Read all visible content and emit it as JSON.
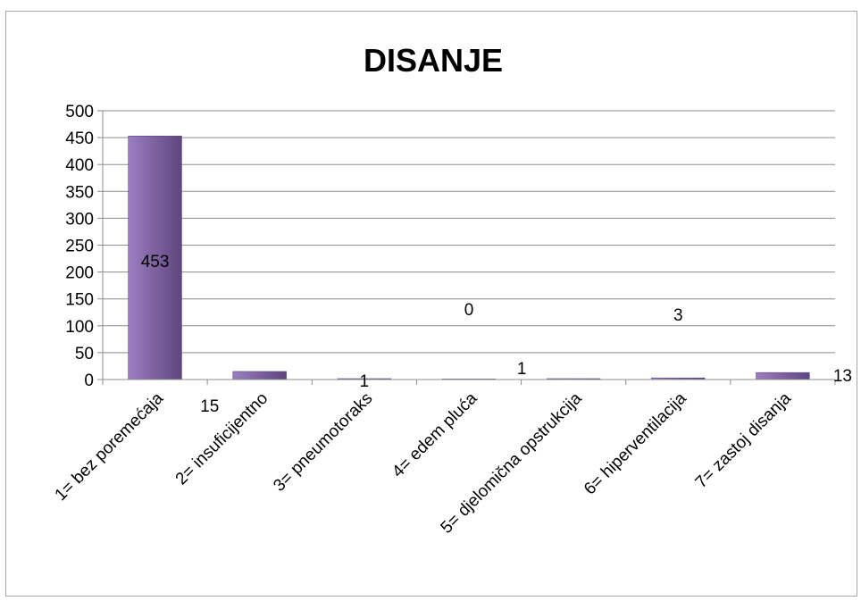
{
  "chart_data": {
    "type": "bar",
    "title": "DISANJE",
    "categories": [
      "1= bez poremećaja",
      "2= insuficijentno",
      "3= pneumotoraks",
      "4= edem pluća",
      "5= djelomična opstrukcija",
      "6= hiperventilacija",
      "7= zastoj disanja"
    ],
    "values": [
      453,
      15,
      1,
      0,
      1,
      3,
      13
    ],
    "data_labels": [
      "453",
      "15",
      "1",
      "0",
      "1",
      "3",
      "13"
    ],
    "ylim": [
      0,
      500
    ],
    "yticks": [
      "0",
      "50",
      "100",
      "150",
      "200",
      "250",
      "300",
      "350",
      "400",
      "450",
      "500"
    ],
    "grid": true,
    "legend": "none",
    "bar_color": "#8064a2",
    "bar_color_light": "#9b7fc2",
    "bar_color_dark": "#5e4680"
  }
}
